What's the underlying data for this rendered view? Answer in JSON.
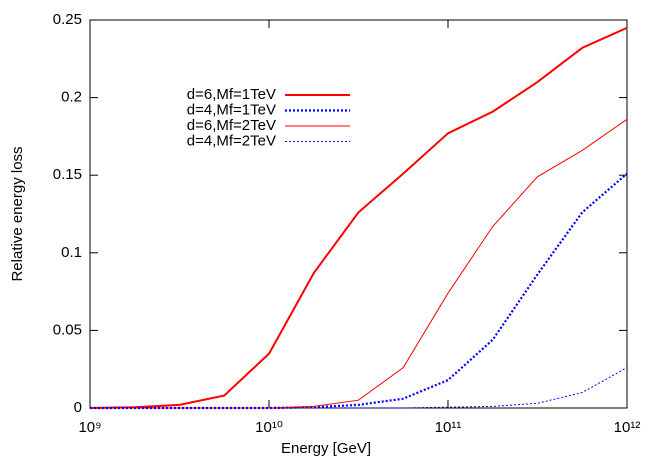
{
  "chart_data": {
    "type": "line",
    "x_label": "Energy [GeV]",
    "y_label": "Relative energy loss",
    "x_log": true,
    "xlim": [
      1000000000.0,
      1000000000000.0
    ],
    "ylim": [
      0,
      0.25
    ],
    "xticks": [
      {
        "value": 1000000000.0,
        "label": "10⁹"
      },
      {
        "value": 10000000000.0,
        "label": "10¹⁰"
      },
      {
        "value": 100000000000.0,
        "label": "10¹¹"
      },
      {
        "value": 1000000000000.0,
        "label": "10¹²"
      }
    ],
    "yticks": [
      0,
      0.05,
      0.1,
      0.15,
      0.2,
      0.25
    ],
    "legend": "upper-left",
    "x": [
      1000000000.0,
      1780000000.0,
      3160000000.0,
      5620000000.0,
      10000000000.0,
      17800000000.0,
      31600000000.0,
      56200000000.0,
      100000000000.0,
      178000000000.0,
      316000000000.0,
      562000000000.0,
      1000000000000.0
    ],
    "series": [
      {
        "name": "d=6,Mf=1TeV",
        "color": "#ff0000",
        "style": "solid",
        "width": 2,
        "values": [
          0,
          0.0005,
          0.002,
          0.008,
          0.035,
          0.087,
          0.126,
          0.151,
          0.177,
          0.191,
          0.21,
          0.232,
          0.245
        ]
      },
      {
        "name": "d=4,Mf=1TeV",
        "color": "#0000ff",
        "style": "dotted",
        "width": 2.2,
        "values": [
          0,
          0,
          0,
          0,
          0,
          0.0005,
          0.002,
          0.006,
          0.018,
          0.044,
          0.086,
          0.126,
          0.151
        ]
      },
      {
        "name": "d=6,Mf=2TeV",
        "color": "#ff0000",
        "style": "solid",
        "width": 1,
        "values": [
          0,
          0,
          0,
          0,
          0,
          0.001,
          0.005,
          0.026,
          0.074,
          0.117,
          0.149,
          0.166,
          0.186
        ]
      },
      {
        "name": "d=4,Mf=2TeV",
        "color": "#0000ff",
        "style": "dotted",
        "width": 1,
        "values": [
          0,
          0,
          0,
          0,
          0,
          0,
          0,
          0,
          0.0005,
          0.001,
          0.003,
          0.01,
          0.026
        ]
      }
    ]
  }
}
